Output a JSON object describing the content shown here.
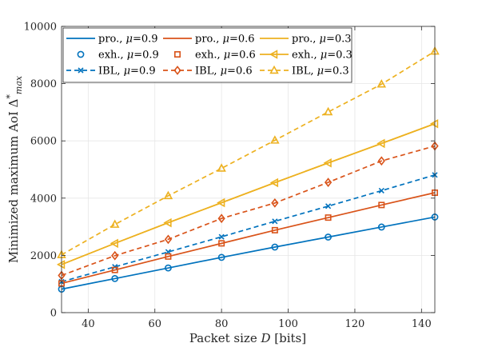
{
  "chart_data": {
    "type": "line",
    "xlabel_parts": [
      "Packet size ",
      "D",
      " [bits]"
    ],
    "ylabel_parts": [
      "Minimized maximum AoI ",
      "Δ",
      "*",
      "max"
    ],
    "xlim": [
      32,
      144
    ],
    "ylim": [
      0,
      10000
    ],
    "xticks": [
      40,
      60,
      80,
      100,
      120,
      140
    ],
    "yticks": [
      0,
      2000,
      4000,
      6000,
      8000,
      10000
    ],
    "grid": true,
    "legend_position": "top-left",
    "x": [
      32,
      48,
      64,
      80,
      96,
      112,
      128,
      144
    ],
    "series": [
      {
        "name": "pro., μ=0.9",
        "label_prefix": "pro., ",
        "label_value": "=0.9",
        "color": "#0072BD",
        "dash": "solid",
        "marker": "none",
        "values": [
          820,
          1190,
          1560,
          1930,
          2290,
          2640,
          2990,
          3340
        ]
      },
      {
        "name": "pro., μ=0.6",
        "label_prefix": "pro., ",
        "label_value": "=0.6",
        "color": "#D95319",
        "dash": "solid",
        "marker": "none",
        "values": [
          1020,
          1490,
          1960,
          2420,
          2880,
          3320,
          3760,
          4190
        ]
      },
      {
        "name": "pro., μ=0.3",
        "label_prefix": "pro., ",
        "label_value": "=0.3",
        "color": "#EDB120",
        "dash": "solid",
        "marker": "none",
        "values": [
          1680,
          2420,
          3140,
          3840,
          4540,
          5230,
          5910,
          6600
        ]
      },
      {
        "name": "exh., μ=0.9",
        "label_prefix": "exh., ",
        "label_value": "=0.9",
        "color": "#0072BD",
        "dash": "none",
        "marker": "circle",
        "values": [
          820,
          1190,
          1560,
          1930,
          2290,
          2640,
          2990,
          3340
        ]
      },
      {
        "name": "exh., μ=0.6",
        "label_prefix": "exh., ",
        "label_value": "=0.6",
        "color": "#D95319",
        "dash": "none",
        "marker": "square",
        "values": [
          1020,
          1490,
          1960,
          2420,
          2880,
          3320,
          3760,
          4190
        ]
      },
      {
        "name": "exh., μ=0.3",
        "label_prefix": "exh., ",
        "label_value": "=0.3",
        "color": "#EDB120",
        "dash": "solid",
        "marker": "triangle-left",
        "values": [
          1680,
          2420,
          3140,
          3840,
          4540,
          5230,
          5910,
          6600
        ]
      },
      {
        "name": "IBL, μ=0.9",
        "label_prefix": "IBL, ",
        "label_value": "=0.9",
        "color": "#0072BD",
        "dash": "dashed",
        "marker": "x",
        "values": [
          1080,
          1600,
          2120,
          2650,
          3190,
          3720,
          4260,
          4810
        ]
      },
      {
        "name": "IBL, μ=0.6",
        "label_prefix": "IBL, ",
        "label_value": "=0.6",
        "color": "#D95319",
        "dash": "dashed",
        "marker": "diamond",
        "values": [
          1300,
          1990,
          2560,
          3290,
          3830,
          4550,
          5300,
          5820
        ]
      },
      {
        "name": "IBL, μ=0.3",
        "label_prefix": "IBL, ",
        "label_value": "=0.3",
        "color": "#EDB120",
        "dash": "dashed",
        "marker": "triangle-up",
        "values": [
          2020,
          3080,
          4080,
          5040,
          6020,
          7010,
          7980,
          9130
        ]
      }
    ]
  }
}
